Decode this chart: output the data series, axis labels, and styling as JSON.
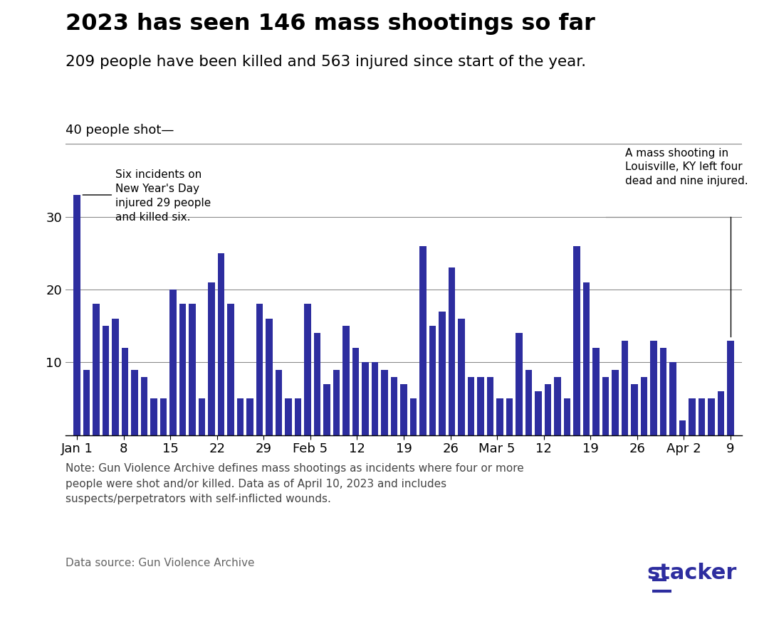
{
  "title": "2023 has seen 146 mass shootings so far",
  "subtitle": "209 people have been killed and 563 injured since start of the year.",
  "ylabel_text": "40 people shot",
  "bar_color": "#2d2d9f",
  "annotation1": "Six incidents on\nNew Year's Day\ninjured 29 people\nand killed six.",
  "annotation2": "A mass shooting in\nLouisville, KY left four\ndead and nine injured.",
  "note": "Note: Gun Violence Archive defines mass shootings as incidents where four or more\npeople were shot and/or killed. Data as of April 10, 2023 and includes\nsuspects/perpetrators with self-inflicted wounds.",
  "source": "Data source: Gun Violence Archive",
  "bar_values": [
    33,
    9,
    18,
    15,
    16,
    12,
    9,
    8,
    5,
    5,
    20,
    18,
    18,
    5,
    21,
    25,
    18,
    5,
    5,
    18,
    16,
    9,
    5,
    5,
    18,
    14,
    7,
    9,
    15,
    12,
    10,
    10,
    9,
    8,
    7,
    5,
    26,
    15,
    17,
    23,
    16,
    8,
    8,
    8,
    5,
    5,
    14,
    9,
    6,
    7,
    8,
    5,
    26,
    21,
    12,
    8,
    9,
    13,
    7,
    8,
    13,
    12,
    10,
    2,
    5,
    5,
    5,
    6,
    13
  ],
  "tick_labels": [
    "Jan 1",
    "8",
    "15",
    "22",
    "29",
    "Feb 5",
    "12",
    "19",
    "26",
    "Mar 5",
    "12",
    "19",
    "26",
    "Apr 2",
    "9"
  ],
  "tick_days": [
    0,
    7,
    14,
    21,
    28,
    35,
    42,
    49,
    56,
    63,
    70,
    77,
    84,
    91,
    98
  ],
  "total_days": 98,
  "ylim": [
    0,
    40
  ],
  "yticks": [
    10,
    20,
    30
  ],
  "stacker_color": "#2d2d9f"
}
